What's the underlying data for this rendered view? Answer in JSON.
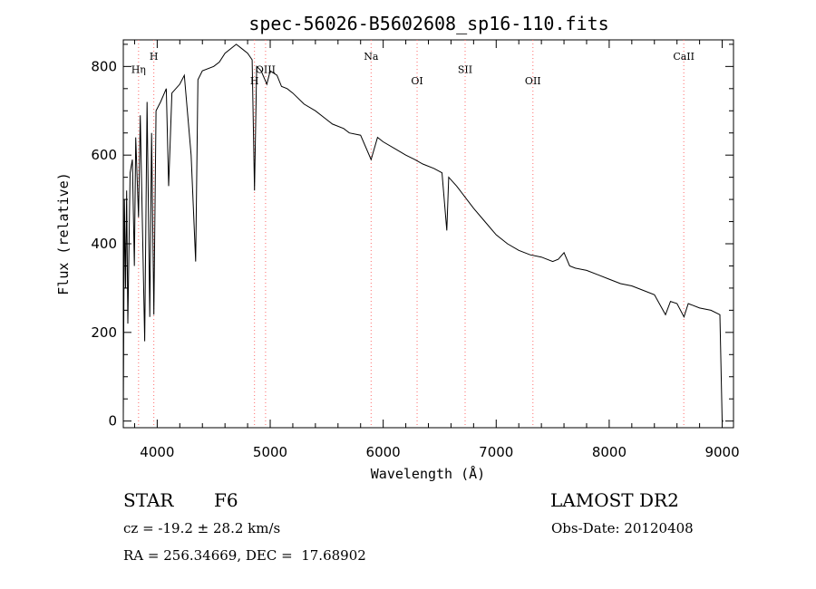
{
  "chart_data": {
    "type": "line",
    "title": "spec-56026-B5602608_sp16-110.fits",
    "xlabel": "Wavelength (Å)",
    "ylabel": "Flux (relative)",
    "xlim": [
      3700,
      9100
    ],
    "ylim": [
      -15,
      860
    ],
    "x_ticks": [
      4000,
      5000,
      6000,
      7000,
      8000,
      9000
    ],
    "y_ticks": [
      0,
      200,
      400,
      600,
      800
    ],
    "x_tick_labels": [
      "4000",
      "5000",
      "6000",
      "7000",
      "8000",
      "9000"
    ],
    "y_tick_labels": [
      "0",
      "200",
      "400",
      "600",
      "800"
    ],
    "line_color": "#000000",
    "marker_color": "#ff6a6a",
    "line_markers": [
      {
        "label": "Hη",
        "x": 3835,
        "label_y": 785
      },
      {
        "label": "H",
        "x": 3970,
        "label_y": 815
      },
      {
        "label": "H",
        "x": 4861,
        "label_y": 760
      },
      {
        "label": "OIII",
        "x": 4959,
        "label_y": 785
      },
      {
        "label": "Na",
        "x": 5893,
        "label_y": 815
      },
      {
        "label": "OI",
        "x": 6300,
        "label_y": 760
      },
      {
        "label": "SII",
        "x": 6725,
        "label_y": 785
      },
      {
        "label": "OII",
        "x": 7325,
        "label_y": 760
      },
      {
        "label": "CaII",
        "x": 8660,
        "label_y": 815
      }
    ],
    "series": [
      {
        "x": [
          3700,
          3710,
          3720,
          3730,
          3740,
          3760,
          3780,
          3798,
          3810,
          3835,
          3850,
          3889,
          3910,
          3934,
          3950,
          3970,
          3990,
          4030,
          4080,
          4101,
          4130,
          4200,
          4240,
          4300,
          4340,
          4360,
          4400,
          4500,
          4550,
          4600,
          4700,
          4750,
          4800,
          4840,
          4861,
          4880,
          4920,
          4970,
          5000,
          5060,
          5100,
          5150,
          5200,
          5300,
          5400,
          5500,
          5550,
          5650,
          5700,
          5800,
          5893,
          5950,
          6000,
          6100,
          6200,
          6280,
          6350,
          6450,
          6520,
          6563,
          6580,
          6650,
          6800,
          6900,
          7000,
          7100,
          7200,
          7300,
          7400,
          7500,
          7550,
          7600,
          7650,
          7700,
          7800,
          7900,
          8000,
          8100,
          8200,
          8300,
          8400,
          8498,
          8542,
          8600,
          8662,
          8700,
          8800,
          8900,
          8980,
          9000,
          9010
        ],
        "y": [
          10,
          500,
          300,
          520,
          220,
          560,
          590,
          350,
          640,
          460,
          690,
          180,
          720,
          235,
          650,
          240,
          700,
          720,
          750,
          530,
          740,
          760,
          780,
          600,
          360,
          770,
          790,
          800,
          810,
          830,
          850,
          840,
          830,
          815,
          520,
          800,
          790,
          760,
          790,
          780,
          755,
          750,
          740,
          715,
          700,
          680,
          670,
          660,
          650,
          645,
          590,
          640,
          630,
          615,
          600,
          590,
          580,
          570,
          560,
          430,
          550,
          530,
          480,
          450,
          420,
          400,
          385,
          375,
          370,
          360,
          365,
          380,
          350,
          345,
          340,
          330,
          320,
          310,
          305,
          295,
          285,
          240,
          270,
          265,
          235,
          265,
          255,
          250,
          240,
          0,
          0
        ]
      }
    ]
  },
  "info": {
    "object_type": "STAR",
    "subclass": "F6",
    "survey": "LAMOST DR2",
    "redshift": "cz = -19.2 ± 28.2 km/s",
    "obs_date": "Obs-Date: 20120408",
    "coords": "RA = 256.34669, DEC =  17.68902"
  }
}
